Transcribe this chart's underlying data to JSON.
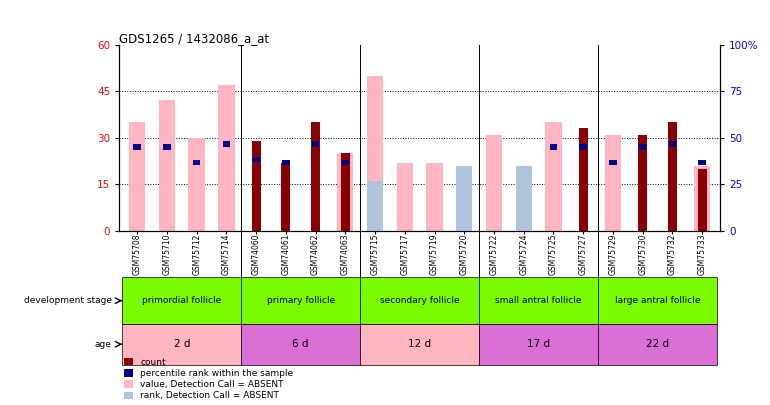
{
  "title": "GDS1265 / 1432086_a_at",
  "samples": [
    "GSM75708",
    "GSM75710",
    "GSM75712",
    "GSM75714",
    "GSM74060",
    "GSM74061",
    "GSM74062",
    "GSM74063",
    "GSM75715",
    "GSM75717",
    "GSM75719",
    "GSM75720",
    "GSM75722",
    "GSM75724",
    "GSM75725",
    "GSM75727",
    "GSM75729",
    "GSM75730",
    "GSM75732",
    "GSM75733"
  ],
  "count": [
    0,
    0,
    0,
    0,
    29,
    22,
    35,
    25,
    0,
    0,
    0,
    0,
    0,
    0,
    0,
    33,
    0,
    31,
    35,
    20
  ],
  "percentile": [
    27,
    27,
    22,
    28,
    23,
    22,
    28,
    22,
    0,
    0,
    0,
    0,
    0,
    0,
    27,
    27,
    22,
    27,
    28,
    22
  ],
  "value_absent": [
    35,
    42,
    30,
    47,
    0,
    0,
    0,
    25,
    50,
    22,
    22,
    21,
    31,
    21,
    35,
    0,
    31,
    0,
    0,
    21
  ],
  "rank_absent": [
    0,
    0,
    0,
    0,
    0,
    0,
    0,
    0,
    16,
    0,
    0,
    21,
    0,
    21,
    0,
    0,
    0,
    0,
    0,
    0
  ],
  "groups": [
    {
      "label": "primordial follicle",
      "start": 0,
      "end": 4
    },
    {
      "label": "primary follicle",
      "start": 4,
      "end": 8
    },
    {
      "label": "secondary follicle",
      "start": 8,
      "end": 12
    },
    {
      "label": "small antral follicle",
      "start": 12,
      "end": 16
    },
    {
      "label": "large antral follicle",
      "start": 16,
      "end": 20
    }
  ],
  "ages": [
    {
      "label": "2 d",
      "start": 0,
      "end": 4,
      "color": "#FFB6C1"
    },
    {
      "label": "6 d",
      "start": 4,
      "end": 8,
      "color": "#DA70D6"
    },
    {
      "label": "12 d",
      "start": 8,
      "end": 12,
      "color": "#FFB6C1"
    },
    {
      "label": "17 d",
      "start": 12,
      "end": 16,
      "color": "#DA70D6"
    },
    {
      "label": "22 d",
      "start": 16,
      "end": 20,
      "color": "#DA70D6"
    }
  ],
  "count_color": "#8B0000",
  "percentile_color": "#00008B",
  "value_absent_color": "#FFB6C1",
  "rank_absent_color": "#B0C4DE",
  "dev_group_color": "#7CFC00",
  "yticks_left": [
    0,
    15,
    30,
    45,
    60
  ],
  "yticks_right": [
    0,
    25,
    50,
    75,
    100
  ],
  "ylim_left": [
    0,
    60
  ],
  "ylim_right": [
    0,
    100
  ],
  "bar_width": 0.3,
  "wide_bar_width": 0.55
}
